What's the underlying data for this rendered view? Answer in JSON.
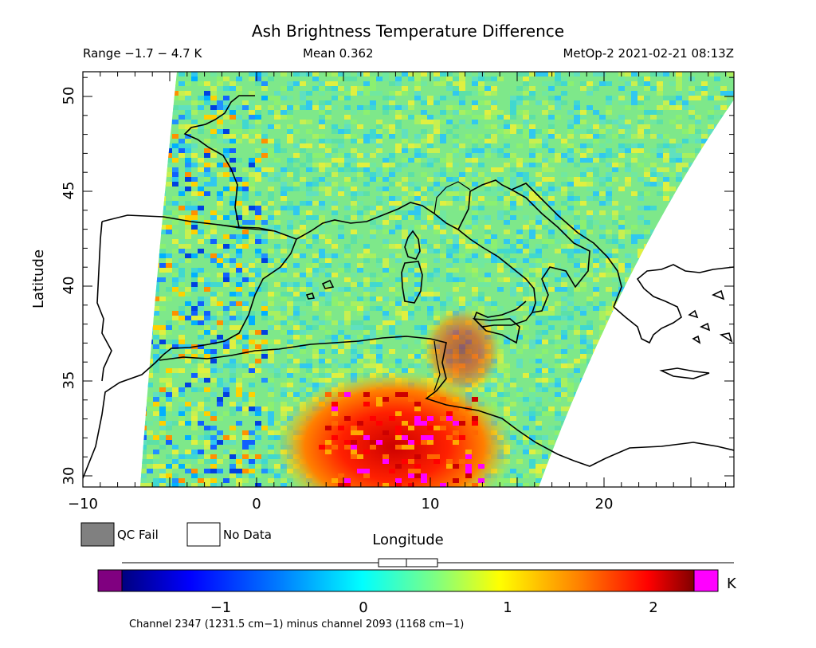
{
  "title": "Ash Brightness Temperature Difference",
  "header": {
    "range": "Range −1.7 − 4.7 K",
    "mean": "Mean 0.362",
    "satellite_time": "MetOp-2 2021-02-21 08:13Z"
  },
  "axes": {
    "xlabel": "Longitude",
    "ylabel": "Latitude",
    "x_ticks": [
      "−10",
      "0",
      "10",
      "20"
    ],
    "y_ticks": [
      "30",
      "35",
      "40",
      "45",
      "50"
    ]
  },
  "legend": {
    "qc_fail": "QC Fail",
    "no_data": "No Data",
    "qc_fail_color": "#808080",
    "no_data_color": "#ffffff"
  },
  "colorbar": {
    "ticks": [
      "−1",
      "0",
      "1",
      "2"
    ],
    "unit": "K",
    "under_color": "#800080",
    "over_color": "#ff00ff",
    "caption": "Channel 2347 (1231.5 cm−1) minus channel 2093 (1168 cm−1)",
    "box_plot": {
      "min": -1.7,
      "q1": 0.05,
      "median": 0.28,
      "q3": 0.65,
      "max": 4.7
    }
  },
  "map_data": {
    "lon_range": [
      -10,
      27.5
    ],
    "lat_range": [
      29.4,
      51.2
    ],
    "field_background": "#6ee890",
    "hot_region_colors": [
      "#ff0000",
      "#cc0000",
      "#ff6600",
      "#ffaa00",
      "#ff00ff"
    ]
  }
}
